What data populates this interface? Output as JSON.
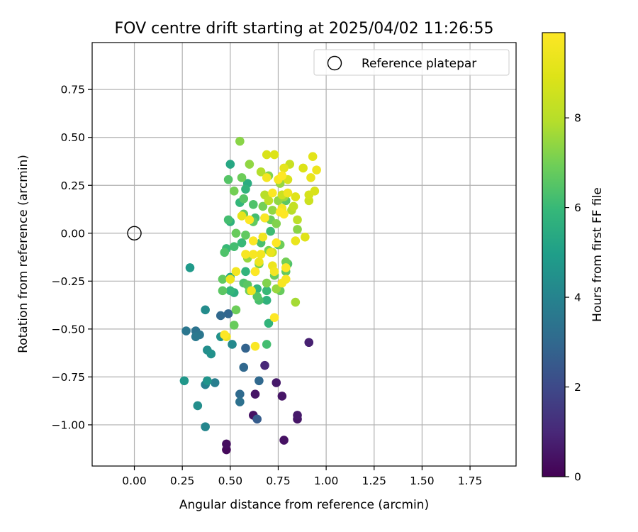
{
  "chart_data": {
    "type": "scatter",
    "title": "FOV centre drift starting at 2025/04/02 11:26:55",
    "xlabel": "Angular distance from reference (arcmin)",
    "ylabel": "Rotation from reference (arcmin)",
    "xlim": [
      -0.22,
      1.99
    ],
    "ylim": [
      -1.215,
      0.995
    ],
    "x_ticks": [
      0.0,
      0.25,
      0.5,
      0.75,
      1.0,
      1.25,
      1.5,
      1.75
    ],
    "x_tick_labels": [
      "0.00",
      "0.25",
      "0.50",
      "0.75",
      "1.00",
      "1.25",
      "1.50",
      "1.75"
    ],
    "y_ticks": [
      0.75,
      0.5,
      0.25,
      0.0,
      -0.25,
      -0.5,
      -0.75,
      -1.0
    ],
    "y_tick_labels": [
      "0.75",
      "0.50",
      "0.25",
      "0.00",
      "−0.25",
      "−0.50",
      "−0.75",
      "−1.00"
    ],
    "grid": true,
    "legend": {
      "position": "top-right",
      "entries": [
        {
          "label": "Reference platepar",
          "marker": "open-circle",
          "x": 0.0,
          "y": 0.0
        }
      ]
    },
    "colorbar": {
      "label": "Hours from first FF file",
      "colormap": "viridis",
      "range": [
        0,
        9.9
      ],
      "ticks": [
        0,
        2,
        4,
        6,
        8
      ],
      "tick_labels": [
        "0",
        "2",
        "4",
        "6",
        "8"
      ]
    },
    "series": [
      {
        "marker": "filled-circle",
        "points": [
          [
            0.48,
            -1.13,
            0.2
          ],
          [
            0.48,
            -1.1,
            0.3
          ],
          [
            0.62,
            -0.95,
            0.4
          ],
          [
            0.63,
            -0.84,
            0.5
          ],
          [
            0.74,
            -0.78,
            0.6
          ],
          [
            0.77,
            -0.85,
            0.5
          ],
          [
            0.78,
            -1.08,
            0.4
          ],
          [
            0.85,
            -0.95,
            0.6
          ],
          [
            0.85,
            -0.97,
            0.5
          ],
          [
            0.91,
            -0.57,
            0.8
          ],
          [
            0.68,
            -0.69,
            1.0
          ],
          [
            0.64,
            -0.97,
            2.6
          ],
          [
            0.55,
            -0.84,
            3.1
          ],
          [
            0.55,
            -0.88,
            3.3
          ],
          [
            0.58,
            -0.6,
            2.8
          ],
          [
            0.57,
            -0.7,
            3.0
          ],
          [
            0.65,
            -0.77,
            3.0
          ],
          [
            0.49,
            -0.42,
            2.9
          ],
          [
            0.45,
            -0.43,
            3.0
          ],
          [
            0.27,
            -0.51,
            3.5
          ],
          [
            0.32,
            -0.51,
            3.4
          ],
          [
            0.32,
            -0.54,
            3.6
          ],
          [
            0.34,
            -0.53,
            3.5
          ],
          [
            0.38,
            -0.61,
            4.4
          ],
          [
            0.4,
            -0.63,
            4.5
          ],
          [
            0.42,
            -0.78,
            3.8
          ],
          [
            0.38,
            -0.77,
            4.6
          ],
          [
            0.37,
            -0.79,
            3.9
          ],
          [
            0.26,
            -0.77,
            4.7
          ],
          [
            0.33,
            -0.9,
            4.4
          ],
          [
            0.37,
            -1.01,
            4.1
          ],
          [
            0.37,
            -0.4,
            4.3
          ],
          [
            0.29,
            -0.18,
            4.8
          ],
          [
            0.45,
            -0.54,
            4.5
          ],
          [
            0.51,
            -0.58,
            4.2
          ],
          [
            0.5,
            -0.23,
            5.4
          ],
          [
            0.5,
            0.36,
            5.3
          ],
          [
            0.49,
            0.28,
            6.5
          ],
          [
            0.5,
            0.06,
            5.7
          ],
          [
            0.49,
            0.07,
            6.2
          ],
          [
            0.48,
            -0.08,
            6.0
          ],
          [
            0.47,
            -0.1,
            6.4
          ],
          [
            0.46,
            -0.24,
            6.7
          ],
          [
            0.46,
            -0.3,
            6.6
          ],
          [
            0.5,
            -0.3,
            5.9
          ],
          [
            0.52,
            -0.31,
            5.6
          ],
          [
            0.52,
            -0.48,
            6.8
          ],
          [
            0.53,
            -0.4,
            6.9
          ],
          [
            0.52,
            -0.07,
            6.2
          ],
          [
            0.53,
            0.0,
            6.8
          ],
          [
            0.52,
            0.22,
            7.0
          ],
          [
            0.55,
            0.48,
            7.3
          ],
          [
            0.55,
            0.16,
            5.9
          ],
          [
            0.56,
            0.29,
            6.9
          ],
          [
            0.57,
            0.18,
            6.5
          ],
          [
            0.58,
            0.23,
            5.8
          ],
          [
            0.59,
            0.26,
            5.5
          ],
          [
            0.6,
            0.36,
            7.4
          ],
          [
            0.57,
            0.1,
            6.8
          ],
          [
            0.58,
            -0.01,
            6.7
          ],
          [
            0.58,
            -0.2,
            5.8
          ],
          [
            0.59,
            -0.27,
            6.6
          ],
          [
            0.6,
            -0.3,
            6.9
          ],
          [
            0.59,
            -0.13,
            7.5
          ],
          [
            0.56,
            -0.05,
            6.0
          ],
          [
            0.57,
            -0.26,
            6.4
          ],
          [
            0.62,
            0.06,
            6.7
          ],
          [
            0.62,
            0.15,
            6.4
          ],
          [
            0.63,
            0.08,
            6.2
          ],
          [
            0.63,
            -0.2,
            6.7
          ],
          [
            0.64,
            -0.29,
            5.8
          ],
          [
            0.64,
            -0.33,
            6.5
          ],
          [
            0.65,
            -0.35,
            6.3
          ],
          [
            0.65,
            -0.16,
            7.0
          ],
          [
            0.66,
            -0.05,
            6.3
          ],
          [
            0.66,
            0.32,
            7.9
          ],
          [
            0.67,
            0.14,
            7.0
          ],
          [
            0.68,
            0.2,
            8.0
          ],
          [
            0.68,
            0.08,
            6.6
          ],
          [
            0.69,
            -0.3,
            6.0
          ],
          [
            0.69,
            -0.26,
            7.2
          ],
          [
            0.69,
            -0.35,
            5.7
          ],
          [
            0.7,
            -0.47,
            5.8
          ],
          [
            0.69,
            -0.58,
            6.2
          ],
          [
            0.69,
            0.41,
            8.8
          ],
          [
            0.7,
            0.3,
            7.2
          ],
          [
            0.7,
            0.17,
            8.2
          ],
          [
            0.7,
            -0.09,
            7.1
          ],
          [
            0.71,
            0.01,
            6.1
          ],
          [
            0.71,
            0.07,
            6.9
          ],
          [
            0.72,
            0.12,
            7.4
          ],
          [
            0.72,
            -0.1,
            8.5
          ],
          [
            0.73,
            0.41,
            8.9
          ],
          [
            0.73,
            -0.22,
            6.8
          ],
          [
            0.74,
            -0.29,
            7.5
          ],
          [
            0.74,
            0.05,
            7.2
          ],
          [
            0.75,
            -0.06,
            6.1
          ],
          [
            0.75,
            0.17,
            7.4
          ],
          [
            0.76,
            0.26,
            7.5
          ],
          [
            0.76,
            -0.3,
            6.8
          ],
          [
            0.76,
            -0.06,
            6.9
          ],
          [
            0.77,
            0.12,
            6.6
          ],
          [
            0.77,
            0.2,
            8.5
          ],
          [
            0.78,
            0.34,
            9.2
          ],
          [
            0.78,
            0.19,
            7.6
          ],
          [
            0.79,
            -0.15,
            7.0
          ],
          [
            0.79,
            0.17,
            6.6
          ],
          [
            0.79,
            -0.2,
            6.7
          ],
          [
            0.8,
            -0.16,
            6.4
          ],
          [
            0.8,
            0.28,
            8.8
          ],
          [
            0.81,
            0.36,
            8.4
          ],
          [
            0.82,
            0.12,
            8.0
          ],
          [
            0.83,
            0.14,
            8.3
          ],
          [
            0.84,
            0.19,
            9.0
          ],
          [
            0.84,
            -0.04,
            9.3
          ],
          [
            0.85,
            0.02,
            7.3
          ],
          [
            0.85,
            0.07,
            8.1
          ],
          [
            0.84,
            -0.36,
            7.7
          ],
          [
            0.88,
            0.34,
            8.9
          ],
          [
            0.89,
            -0.02,
            9.0
          ],
          [
            0.91,
            0.2,
            8.7
          ],
          [
            0.91,
            0.17,
            8.5
          ],
          [
            0.92,
            0.29,
            9.3
          ],
          [
            0.93,
            0.4,
            9.1
          ],
          [
            0.94,
            0.22,
            8.8
          ],
          [
            0.95,
            0.33,
            9.4
          ],
          [
            0.47,
            -0.53,
            9.9
          ],
          [
            0.48,
            -0.54,
            9.5
          ],
          [
            0.5,
            -0.24,
            9.4
          ],
          [
            0.53,
            -0.2,
            9.6
          ],
          [
            0.56,
            0.09,
            9.2
          ],
          [
            0.58,
            -0.11,
            9.7
          ],
          [
            0.6,
            0.07,
            9.9
          ],
          [
            0.61,
            -0.3,
            9.5
          ],
          [
            0.62,
            -0.04,
            9.8
          ],
          [
            0.62,
            -0.11,
            9.7
          ],
          [
            0.63,
            -0.2,
            9.9
          ],
          [
            0.63,
            -0.59,
            9.8
          ],
          [
            0.65,
            -0.15,
            9.4
          ],
          [
            0.66,
            -0.11,
            9.6
          ],
          [
            0.67,
            -0.02,
            9.5
          ],
          [
            0.68,
            0.08,
            9.8
          ],
          [
            0.69,
            0.29,
            9.6
          ],
          [
            0.71,
            -0.1,
            9.3
          ],
          [
            0.72,
            -0.17,
            9.4
          ],
          [
            0.72,
            0.21,
            9.8
          ],
          [
            0.73,
            -0.44,
            9.9
          ],
          [
            0.73,
            -0.2,
            9.6
          ],
          [
            0.74,
            -0.05,
            9.9
          ],
          [
            0.75,
            0.28,
            9.7
          ],
          [
            0.76,
            0.11,
            9.9
          ],
          [
            0.77,
            0.13,
            9.6
          ],
          [
            0.77,
            0.3,
            9.9
          ],
          [
            0.77,
            -0.26,
            9.7
          ],
          [
            0.78,
            0.1,
            9.9
          ],
          [
            0.79,
            -0.18,
            9.9
          ],
          [
            0.79,
            -0.24,
            9.7
          ],
          [
            0.8,
            0.21,
            9.5
          ]
        ]
      }
    ]
  }
}
